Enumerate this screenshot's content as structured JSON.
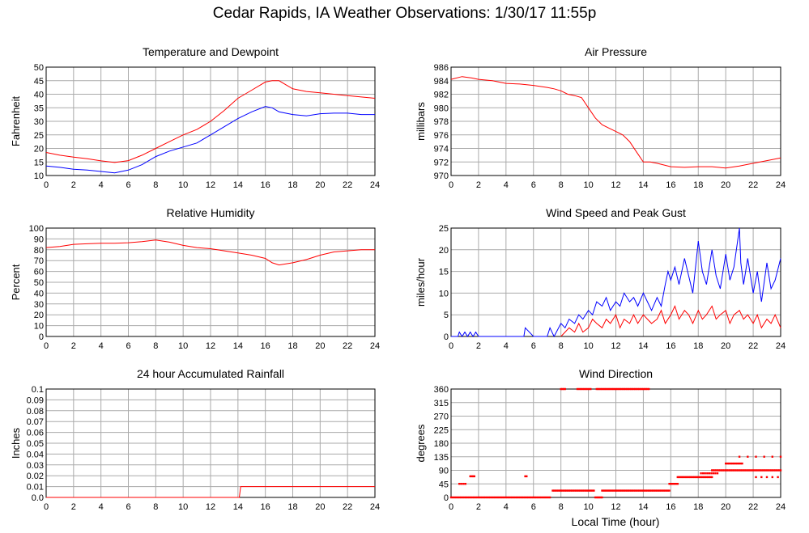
{
  "page": {
    "title": "Cedar Rapids, IA Weather Observations: 1/30/17 11:55p",
    "xlabel": "Local Time (hour)"
  },
  "colors": {
    "red": "#ff0000",
    "blue": "#0000ff",
    "grid": "#aaaaaa"
  },
  "chart_data": [
    {
      "type": "line",
      "title": "Temperature and Dewpoint",
      "ylabel": "Fahrenheit",
      "xlim": [
        0,
        24
      ],
      "ylim": [
        10,
        50
      ],
      "xticks": [
        0,
        2,
        4,
        6,
        8,
        10,
        12,
        14,
        16,
        18,
        20,
        22,
        24
      ],
      "yticks": [
        10,
        15,
        20,
        25,
        30,
        35,
        40,
        45,
        50
      ],
      "grid": true,
      "series": [
        {
          "color": "#ff0000",
          "x": [
            0,
            1,
            2,
            3,
            4,
            5,
            6,
            7,
            8,
            9,
            10,
            11,
            12,
            13,
            14,
            15,
            16,
            16.5,
            17,
            17.5,
            18,
            19,
            20,
            21,
            22,
            23,
            24
          ],
          "y": [
            18.5,
            17.5,
            16.8,
            16.2,
            15.4,
            14.8,
            15.5,
            17.5,
            20,
            22.5,
            25,
            27,
            30,
            34,
            38.5,
            41.5,
            44.5,
            45,
            45,
            43.5,
            42,
            41,
            40.5,
            40,
            39.5,
            39,
            38.5
          ]
        },
        {
          "color": "#0000ff",
          "x": [
            0,
            1,
            2,
            3,
            4,
            5,
            6,
            7,
            8,
            9,
            10,
            11,
            12,
            13,
            14,
            15,
            16,
            16.5,
            17,
            18,
            19,
            20,
            21,
            22,
            23,
            24
          ],
          "y": [
            13.5,
            13,
            12.3,
            12,
            11.5,
            11,
            12,
            14,
            17,
            19,
            20.5,
            22,
            25,
            28,
            31,
            33.5,
            35.5,
            35,
            33.5,
            32.5,
            32,
            32.8,
            33,
            33,
            32.5,
            32.5
          ]
        }
      ]
    },
    {
      "type": "line",
      "title": "Air Pressure",
      "ylabel": "millibars",
      "xlim": [
        0,
        24
      ],
      "ylim": [
        970,
        986
      ],
      "xticks": [
        0,
        2,
        4,
        6,
        8,
        10,
        12,
        14,
        16,
        18,
        20,
        22,
        24
      ],
      "yticks": [
        970,
        972,
        974,
        976,
        978,
        980,
        982,
        984,
        986
      ],
      "grid": true,
      "series": [
        {
          "color": "#ff0000",
          "x": [
            0,
            0.8,
            1.5,
            2,
            3,
            4,
            5,
            6,
            7,
            7.5,
            8,
            8.5,
            9,
            9.5,
            10,
            10.5,
            11,
            11.5,
            12,
            12.5,
            13,
            13.5,
            14,
            14.5,
            15,
            16,
            17,
            18,
            19,
            20,
            21,
            22,
            23,
            24
          ],
          "y": [
            984.2,
            984.6,
            984.4,
            984.2,
            984,
            983.6,
            983.5,
            983.3,
            983,
            982.8,
            982.5,
            982,
            981.8,
            981.5,
            980,
            978.5,
            977.5,
            977,
            976.5,
            976,
            975,
            973.5,
            972,
            972,
            971.8,
            971.3,
            971.2,
            971.3,
            971.3,
            971.1,
            971.4,
            971.8,
            972.2,
            972.6
          ]
        }
      ]
    },
    {
      "type": "line",
      "title": "Relative Humidity",
      "ylabel": "Percent",
      "xlim": [
        0,
        24
      ],
      "ylim": [
        0,
        100
      ],
      "xticks": [
        0,
        2,
        4,
        6,
        8,
        10,
        12,
        14,
        16,
        18,
        20,
        22,
        24
      ],
      "yticks": [
        0,
        10,
        20,
        30,
        40,
        50,
        60,
        70,
        80,
        90,
        100
      ],
      "grid": true,
      "series": [
        {
          "color": "#ff0000",
          "x": [
            0,
            1,
            2,
            3,
            4,
            5,
            6,
            7,
            8,
            9,
            10,
            11,
            12,
            13,
            14,
            15,
            16,
            16.5,
            17,
            18,
            19,
            20,
            21,
            22,
            23,
            24
          ],
          "y": [
            82,
            83,
            85,
            85.5,
            86,
            86,
            86.5,
            87.5,
            89,
            87,
            84,
            82,
            81,
            79,
            77,
            75,
            72,
            68,
            66,
            68,
            71,
            75,
            78,
            79,
            80,
            80
          ]
        }
      ]
    },
    {
      "type": "line",
      "title": "Wind Speed and Peak Gust",
      "ylabel": "miles/hour",
      "xlim": [
        0,
        24
      ],
      "ylim": [
        0,
        25
      ],
      "xticks": [
        0,
        2,
        4,
        6,
        8,
        10,
        12,
        14,
        16,
        18,
        20,
        22,
        24
      ],
      "yticks": [
        0,
        5,
        10,
        15,
        20,
        25
      ],
      "grid": true,
      "series": [
        {
          "color": "#0000ff",
          "x": [
            0,
            0.5,
            0.6,
            0.8,
            1,
            1.2,
            1.4,
            1.6,
            1.8,
            2,
            3,
            4,
            5,
            5.3,
            5.4,
            6,
            7,
            7.2,
            7.5,
            8,
            8.3,
            8.6,
            9,
            9.3,
            9.6,
            10,
            10.3,
            10.6,
            11,
            11.3,
            11.6,
            12,
            12.3,
            12.6,
            13,
            13.3,
            13.6,
            14,
            14.3,
            14.6,
            15,
            15.3,
            15.6,
            15.8,
            16,
            16.3,
            16.6,
            17,
            17.3,
            17.6,
            18,
            18.3,
            18.6,
            19,
            19.3,
            19.6,
            20,
            20.3,
            20.6,
            21,
            21.1,
            21.3,
            21.6,
            22,
            22.3,
            22.6,
            23,
            23.3,
            23.6,
            24
          ],
          "y": [
            0,
            0,
            1,
            0,
            1,
            0,
            1,
            0,
            1,
            0,
            0,
            0,
            0,
            0,
            2,
            0,
            0,
            2,
            0,
            3,
            2,
            4,
            3,
            5,
            4,
            6,
            5,
            8,
            7,
            9,
            6,
            8,
            7,
            10,
            8,
            9,
            7,
            10,
            8,
            6,
            9,
            7,
            12,
            15,
            13,
            16,
            12,
            18,
            14,
            10,
            22,
            15,
            12,
            20,
            14,
            11,
            19,
            13,
            16,
            25,
            17,
            12,
            18,
            10,
            15,
            8,
            17,
            11,
            13,
            18
          ]
        },
        {
          "color": "#ff0000",
          "x": [
            8,
            8.3,
            8.6,
            9,
            9.3,
            9.6,
            10,
            10.3,
            10.6,
            11,
            11.3,
            11.6,
            12,
            12.3,
            12.6,
            13,
            13.3,
            13.6,
            14,
            14.3,
            14.6,
            15,
            15.3,
            15.6,
            16,
            16.3,
            16.6,
            17,
            17.3,
            17.6,
            18,
            18.3,
            18.6,
            19,
            19.3,
            19.6,
            20,
            20.3,
            20.6,
            21,
            21.3,
            21.6,
            22,
            22.3,
            22.6,
            23,
            23.3,
            23.6,
            24
          ],
          "y": [
            0,
            1,
            2,
            1,
            3,
            1,
            2,
            4,
            3,
            2,
            4,
            3,
            5,
            2,
            4,
            3,
            5,
            3,
            5,
            4,
            3,
            4,
            6,
            3,
            5,
            7,
            4,
            6,
            5,
            3,
            6,
            4,
            5,
            7,
            4,
            5,
            6,
            3,
            5,
            6,
            4,
            5,
            3,
            5,
            2,
            4,
            3,
            5,
            2
          ]
        }
      ]
    },
    {
      "type": "line",
      "title": "24 hour Accumulated Rainfall",
      "ylabel": "Inches",
      "xlim": [
        0,
        24
      ],
      "ylim": [
        0,
        0.1
      ],
      "xticks": [
        0,
        2,
        4,
        6,
        8,
        10,
        12,
        14,
        16,
        18,
        20,
        22,
        24
      ],
      "yticks": [
        "0.0",
        "0.01",
        "0.02",
        "0.03",
        "0.04",
        "0.05",
        "0.06",
        "0.07",
        "0.08",
        "0.09",
        "0.1"
      ],
      "grid": true,
      "series": [
        {
          "color": "#ff0000",
          "x": [
            0,
            14.1,
            14.2,
            24
          ],
          "y": [
            0,
            0,
            0.01,
            0.01
          ]
        }
      ]
    },
    {
      "type": "scatter",
      "title": "Wind Direction",
      "ylabel": "degrees",
      "xlim": [
        0,
        24
      ],
      "ylim": [
        0,
        360
      ],
      "xticks": [
        0,
        2,
        4,
        6,
        8,
        10,
        12,
        14,
        16,
        18,
        20,
        22,
        24
      ],
      "yticks": [
        0,
        45,
        90,
        135,
        180,
        225,
        270,
        315,
        360
      ],
      "grid": true,
      "segments": [
        {
          "x0": 0,
          "x1": 7.3,
          "y": 0,
          "step": 0.12
        },
        {
          "x0": 0.6,
          "x1": 1.1,
          "y": 45,
          "step": 0.15
        },
        {
          "x0": 1.4,
          "x1": 1.7,
          "y": 70,
          "step": 0.1
        },
        {
          "x0": 5.4,
          "x1": 5.5,
          "y": 70,
          "step": 0.1
        },
        {
          "x0": 7.4,
          "x1": 10.4,
          "y": 22.5,
          "step": 0.1
        },
        {
          "x0": 8.0,
          "x1": 8.3,
          "y": 360,
          "step": 0.1
        },
        {
          "x0": 9.2,
          "x1": 10.2,
          "y": 360,
          "step": 0.12
        },
        {
          "x0": 10.5,
          "x1": 11.0,
          "y": 0,
          "step": 0.1
        },
        {
          "x0": 10.6,
          "x1": 14.4,
          "y": 360,
          "step": 0.1
        },
        {
          "x0": 11.0,
          "x1": 15.9,
          "y": 22.5,
          "step": 0.1
        },
        {
          "x0": 15.9,
          "x1": 16.5,
          "y": 45,
          "step": 0.1
        },
        {
          "x0": 16.5,
          "x1": 19.0,
          "y": 67.5,
          "step": 0.1
        },
        {
          "x0": 18.2,
          "x1": 19.5,
          "y": 80,
          "step": 0.15
        },
        {
          "x0": 19.0,
          "x1": 24.0,
          "y": 90,
          "step": 0.1
        },
        {
          "x0": 20.0,
          "x1": 21.2,
          "y": 112.5,
          "step": 0.12
        },
        {
          "x0": 21.0,
          "x1": 24.0,
          "y": 135,
          "step": 0.6
        },
        {
          "x0": 22.2,
          "x1": 23.8,
          "y": 67.5,
          "step": 0.4
        }
      ]
    }
  ]
}
